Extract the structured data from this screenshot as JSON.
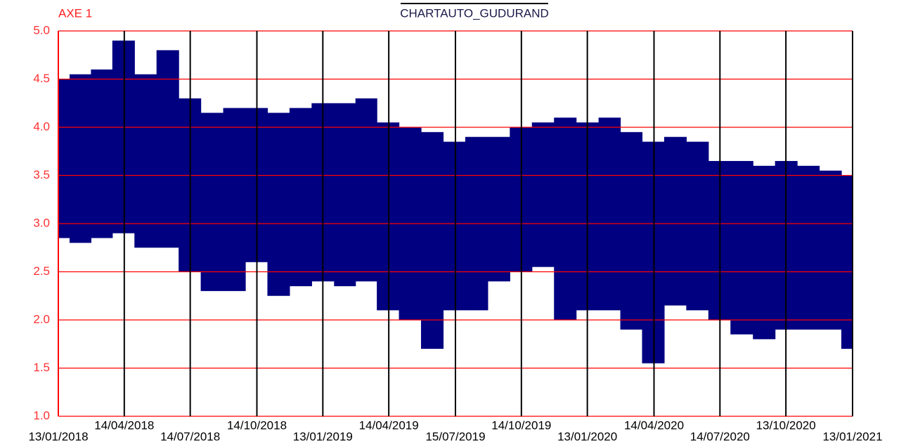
{
  "chart_data": {
    "type": "range",
    "title": "CHARTAUTO_GUDURAND",
    "axis_label": "AXE 1",
    "color": "#000080",
    "grid": true,
    "x": [
      "13/01/2018",
      "13/02/2018",
      "13/03/2018",
      "13/04/2018",
      "13/05/2018",
      "13/06/2018",
      "13/07/2018",
      "13/08/2018",
      "13/09/2018",
      "13/10/2018",
      "13/11/2018",
      "13/12/2018",
      "13/01/2019",
      "13/02/2019",
      "13/03/2019",
      "13/04/2019",
      "13/05/2019",
      "13/06/2019",
      "13/07/2019",
      "13/08/2019",
      "13/09/2019",
      "13/10/2019",
      "13/11/2019",
      "13/12/2019",
      "13/01/2020",
      "13/02/2020",
      "13/03/2020",
      "13/04/2020",
      "13/05/2020",
      "13/06/2020",
      "13/07/2020",
      "13/08/2020",
      "13/09/2020",
      "13/10/2020",
      "13/11/2020",
      "13/12/2020",
      "13/01/2021"
    ],
    "high": [
      4.5,
      4.55,
      4.6,
      4.9,
      4.55,
      4.8,
      4.3,
      4.15,
      4.2,
      4.2,
      4.15,
      4.2,
      4.25,
      4.25,
      4.3,
      4.05,
      4.0,
      3.95,
      3.85,
      3.9,
      3.9,
      4.0,
      4.05,
      4.1,
      4.05,
      4.1,
      3.95,
      3.85,
      3.9,
      3.85,
      3.65,
      3.65,
      3.6,
      3.65,
      3.6,
      3.55,
      3.5
    ],
    "low": [
      2.85,
      2.8,
      2.85,
      2.9,
      2.75,
      2.75,
      2.5,
      2.3,
      2.3,
      2.6,
      2.25,
      2.35,
      2.4,
      2.35,
      2.4,
      2.1,
      2.0,
      1.7,
      2.1,
      2.1,
      2.4,
      2.5,
      2.55,
      2.0,
      2.1,
      2.1,
      1.9,
      1.55,
      2.15,
      2.1,
      2.0,
      1.85,
      1.8,
      1.9,
      1.9,
      1.9,
      1.7
    ],
    "xlim": [
      "13/01/2018",
      "13/01/2021"
    ],
    "xticks": [
      "13/01/2018",
      "14/04/2018",
      "14/07/2018",
      "14/10/2018",
      "13/01/2019",
      "14/04/2019",
      "15/07/2019",
      "14/10/2019",
      "13/01/2020",
      "14/04/2020",
      "14/07/2020",
      "13/10/2020",
      "13/01/2021"
    ],
    "ylim": [
      1,
      5
    ],
    "yticks": [
      {
        "value": 1,
        "label": "1.0"
      },
      {
        "value": 1.5,
        "label": "1.5"
      },
      {
        "value": 2,
        "label": "2.0"
      },
      {
        "value": 2.5,
        "label": "2.5"
      },
      {
        "value": 3,
        "label": "3.0"
      },
      {
        "value": 3.5,
        "label": "3.5"
      },
      {
        "value": 4,
        "label": "4.0"
      },
      {
        "value": 4.5,
        "label": "4.5"
      },
      {
        "value": 5,
        "label": "5.0"
      }
    ]
  }
}
